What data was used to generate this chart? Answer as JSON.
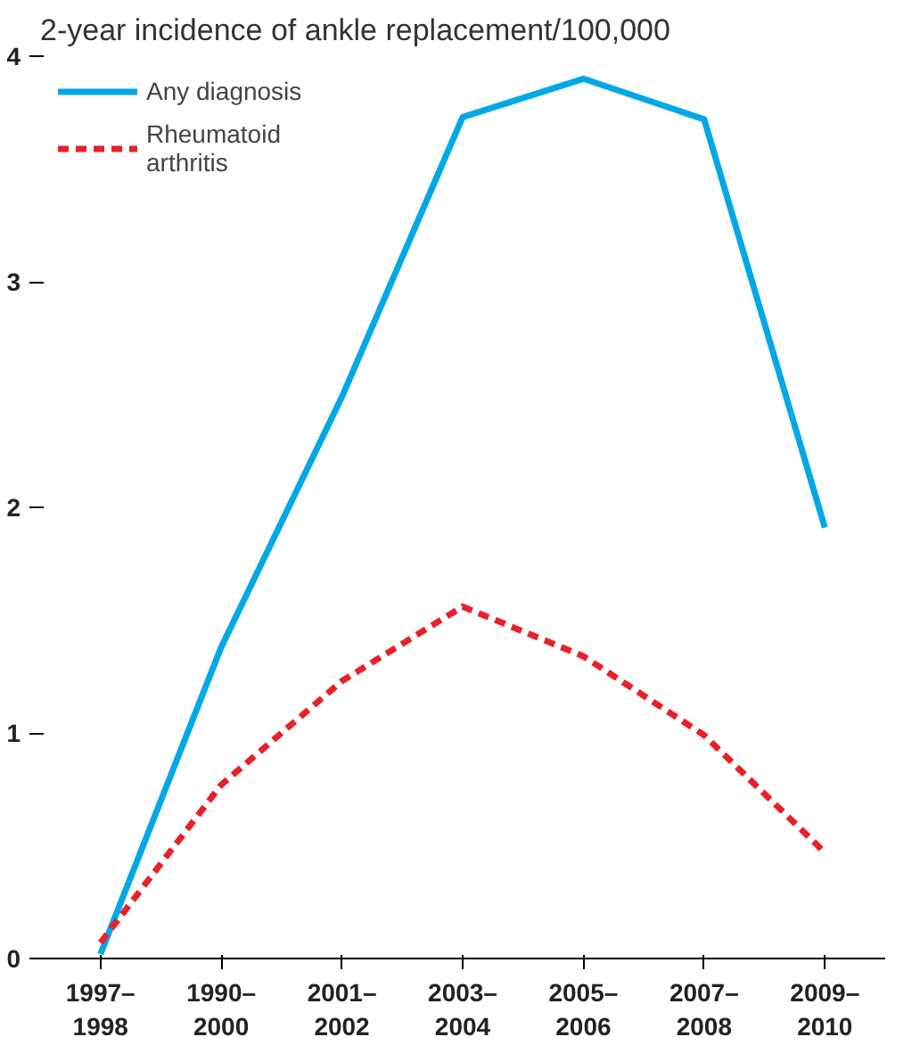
{
  "chart_data": {
    "type": "line",
    "title": "2-year incidence of ankle replacement/100,000",
    "categories": [
      "1997–\n1998",
      "1990–\n2000",
      "2001–\n2002",
      "2003–\n2004",
      "2005–\n2006",
      "2007–\n2008",
      "2009–\n2010"
    ],
    "series": [
      {
        "name": "Any diagnosis",
        "color": "#00a8e6",
        "line_style": "solid",
        "values": [
          0.02,
          1.38,
          2.49,
          3.73,
          3.9,
          3.72,
          1.91
        ]
      },
      {
        "name": "Rheumatoid\narthritis",
        "color": "#e8202a",
        "line_style": "dashed",
        "values": [
          0.07,
          0.77,
          1.23,
          1.56,
          1.34,
          0.99,
          0.47
        ]
      }
    ],
    "ylim": [
      0,
      4
    ],
    "yticks": [
      0,
      1,
      2,
      3,
      4
    ],
    "grid": false,
    "legend": "top left",
    "marker": "none"
  }
}
